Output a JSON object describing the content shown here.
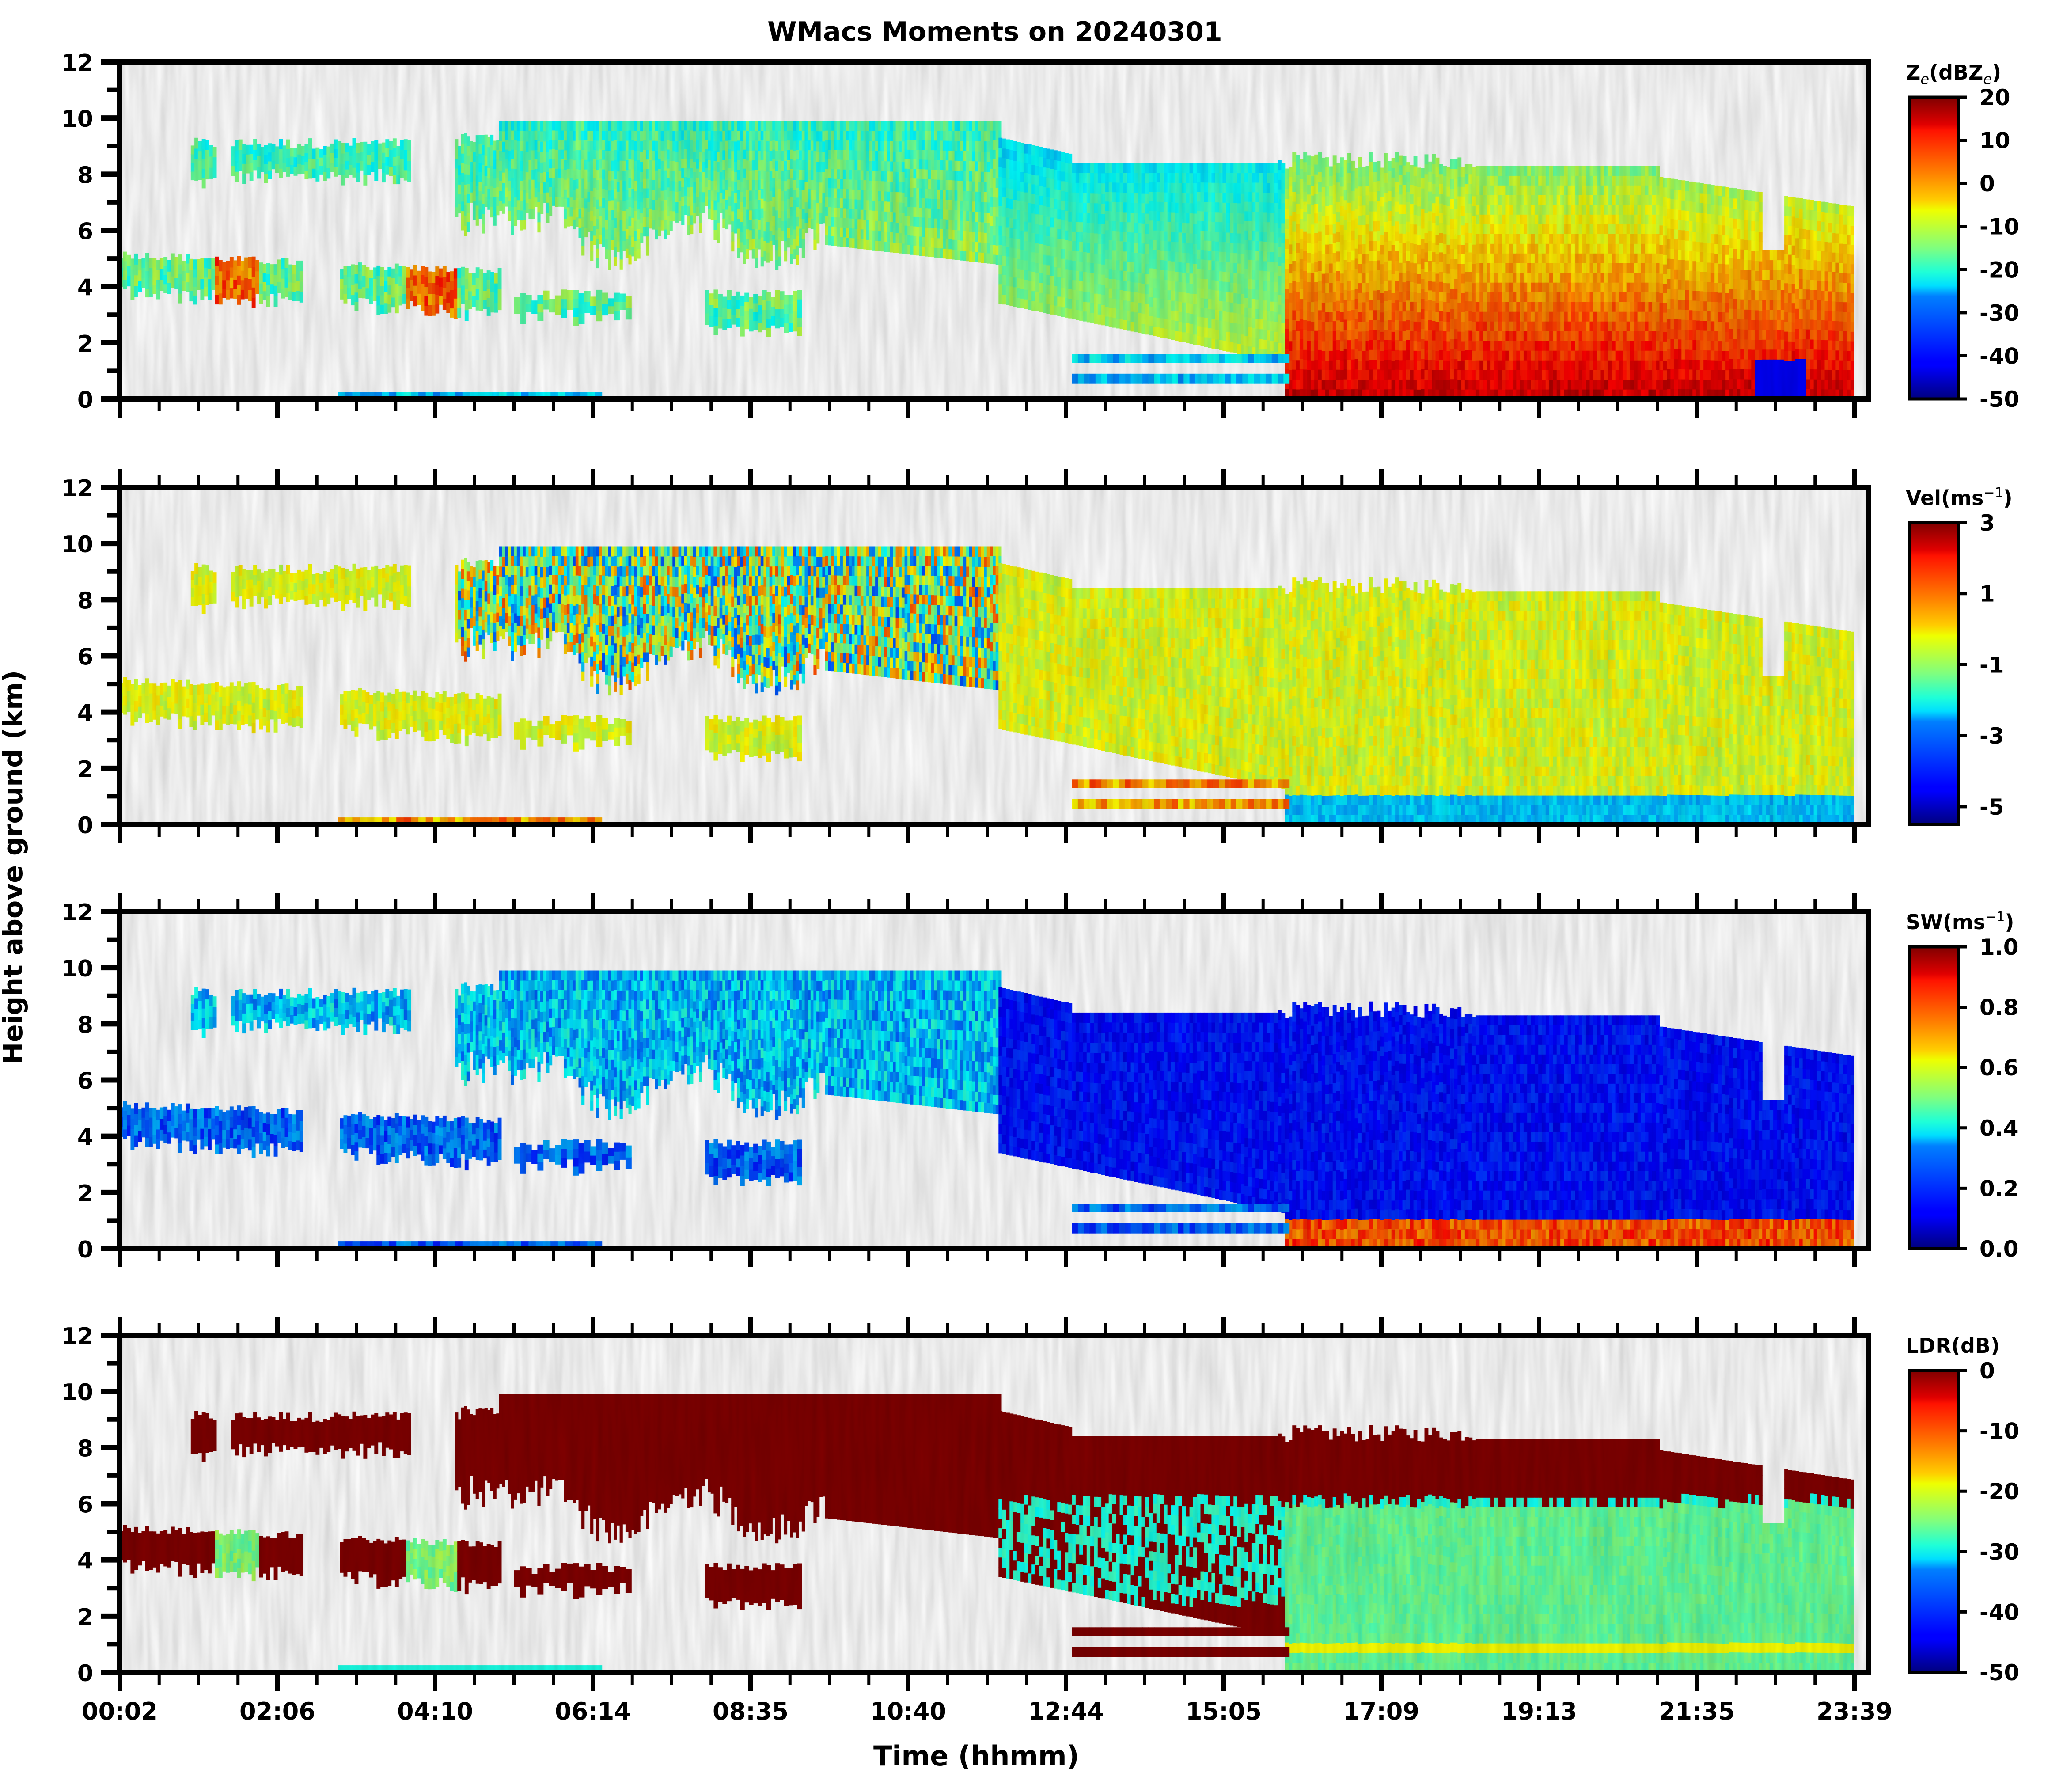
{
  "chart_data": {
    "type": "heatmap",
    "title": "WMacs Moments on 20240301",
    "xlabel": "Time (hhmm)",
    "ylabel": "Height above ground (km)",
    "x_tick_labels": [
      "00:02",
      "02:06",
      "04:10",
      "06:14",
      "08:35",
      "10:40",
      "12:44",
      "15:05",
      "17:09",
      "19:13",
      "21:35",
      "23:39"
    ],
    "minor_ticks_per_interval": 3,
    "ylim": [
      0,
      12
    ],
    "y_ticks": [
      0,
      2,
      4,
      6,
      8,
      10,
      12
    ],
    "y_minor_ticks": [
      1,
      3,
      5,
      7,
      9,
      11
    ],
    "colormap": "jet",
    "colormap_stops": [
      "#00007f",
      "#0000ff",
      "#007fff",
      "#00ffff",
      "#7fff7f",
      "#ffff00",
      "#ff7f00",
      "#ff0000",
      "#7f0000"
    ],
    "panels": [
      {
        "name": "reflectivity",
        "colorbar_label": "Ze(dBZe)",
        "colorbar_label_main": "Z",
        "colorbar_label_sub": "e",
        "colorbar_label_mid": "(dBZ",
        "colorbar_label_sub2": "e",
        "colorbar_label_end": ")",
        "vmin": -50,
        "vmax": 20,
        "ticks": [
          20,
          10,
          0,
          -10,
          -20,
          -30,
          -40,
          -50
        ],
        "tick_labels": [
          "20",
          "10",
          "0",
          "-10",
          "-20",
          "-30",
          "-40",
          "-50"
        ]
      },
      {
        "name": "velocity",
        "colorbar_label": "Vel(ms−1)",
        "colorbar_label_main": "Vel(ms",
        "colorbar_label_sup": "−1",
        "colorbar_label_end": ")",
        "vmin": -5.5,
        "vmax": 3,
        "ticks": [
          3,
          1,
          -1,
          -3,
          -5
        ],
        "tick_labels": [
          "3",
          "1",
          "-1",
          "-3",
          "-5"
        ]
      },
      {
        "name": "spectrum-width",
        "colorbar_label": "SW(ms−1)",
        "colorbar_label_main": "SW(ms",
        "colorbar_label_sup": "−1",
        "colorbar_label_end": ")",
        "vmin": 0.0,
        "vmax": 1.0,
        "ticks": [
          1.0,
          0.8,
          0.6,
          0.4,
          0.2,
          0.0
        ],
        "tick_labels": [
          "1.0",
          "0.8",
          "0.6",
          "0.4",
          "0.2",
          "0.0"
        ]
      },
      {
        "name": "ldr",
        "colorbar_label": "LDR(dB)",
        "colorbar_label_main": "LDR(dB)",
        "vmin": -50,
        "vmax": 0,
        "ticks": [
          0,
          -10,
          -20,
          -30,
          -40,
          -50
        ],
        "tick_labels": [
          "0",
          "-10",
          "-20",
          "-30",
          "-40",
          "-50"
        ]
      }
    ]
  }
}
